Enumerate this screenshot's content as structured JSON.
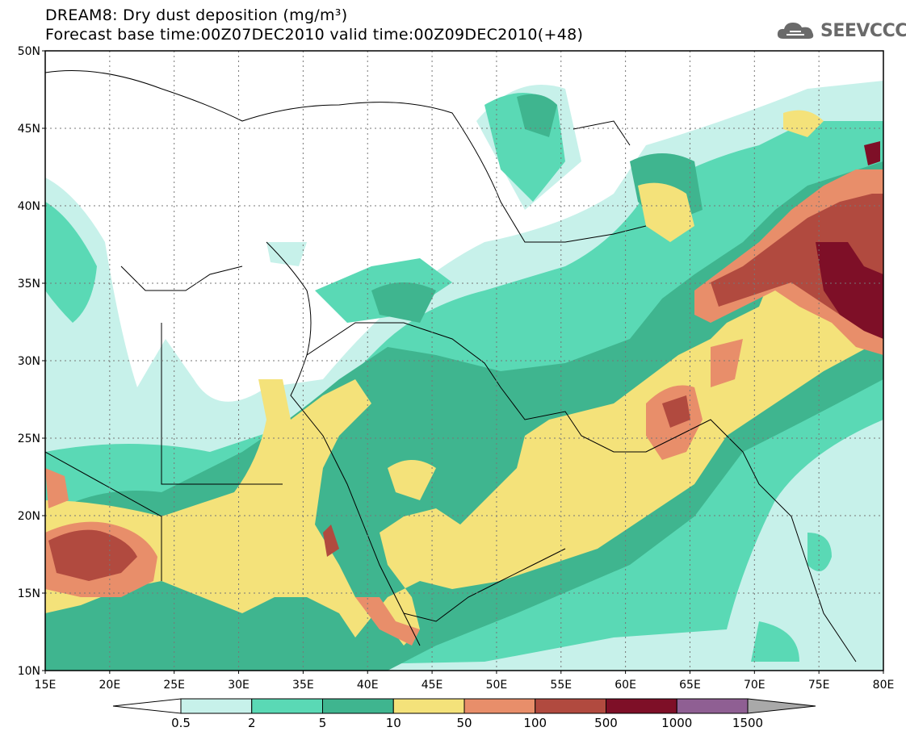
{
  "title_line1": "DREAM8: Dry dust deposition (mg/m³)",
  "title_line2": "Forecast base time:00Z07DEC2010 valid time:00Z09DEC2010(+48)",
  "logo": {
    "text": "SEEVCCC",
    "icon": "cloud-icon"
  },
  "axes": {
    "lat_labels": [
      "50N",
      "45N",
      "40N",
      "35N",
      "30N",
      "25N",
      "20N",
      "15N",
      "10N"
    ],
    "lon_labels": [
      "15E",
      "20E",
      "25E",
      "30E",
      "35E",
      "40E",
      "45E",
      "50E",
      "55E",
      "60E",
      "65E",
      "70E",
      "75E",
      "80E"
    ],
    "lat_range": [
      10,
      50
    ],
    "lon_range": [
      15,
      80
    ],
    "grid": "dotted"
  },
  "colorbar": {
    "thresholds": [
      "0.5",
      "2",
      "5",
      "10",
      "50",
      "100",
      "500",
      "1000",
      "1500"
    ],
    "colors": [
      "#ffffff",
      "#c7f1ea",
      "#5ad9b5",
      "#3fb58f",
      "#f4e27a",
      "#e88e6a",
      "#b14a3f",
      "#7e0f27",
      "#8f5f93",
      "#a9a9a9"
    ]
  }
}
